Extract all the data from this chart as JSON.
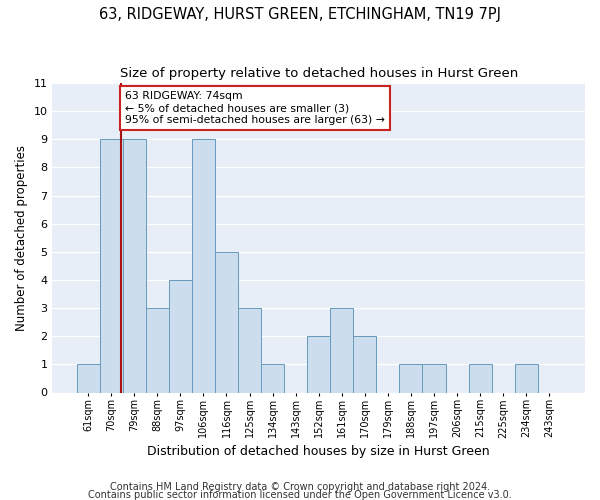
{
  "title": "63, RIDGEWAY, HURST GREEN, ETCHINGHAM, TN19 7PJ",
  "subtitle": "Size of property relative to detached houses in Hurst Green",
  "xlabel": "Distribution of detached houses by size in Hurst Green",
  "ylabel": "Number of detached properties",
  "bins": [
    "61sqm",
    "70sqm",
    "79sqm",
    "88sqm",
    "97sqm",
    "106sqm",
    "116sqm",
    "125sqm",
    "134sqm",
    "143sqm",
    "152sqm",
    "161sqm",
    "170sqm",
    "179sqm",
    "188sqm",
    "197sqm",
    "206sqm",
    "215sqm",
    "225sqm",
    "234sqm",
    "243sqm"
  ],
  "values": [
    1,
    9,
    9,
    3,
    4,
    9,
    5,
    3,
    1,
    0,
    2,
    3,
    2,
    0,
    1,
    1,
    0,
    1,
    0,
    1,
    0
  ],
  "bar_color": "#ccdded",
  "bar_edge_color": "#6699bb",
  "annotation_text": "63 RIDGEWAY: 74sqm\n← 5% of detached houses are smaller (3)\n95% of semi-detached houses are larger (63) →",
  "annotation_box_color": "#ffffff",
  "annotation_box_edge_color": "#cc2222",
  "vline_color": "#aa1111",
  "ylim": [
    0,
    11
  ],
  "yticks": [
    0,
    1,
    2,
    3,
    4,
    5,
    6,
    7,
    8,
    9,
    10,
    11
  ],
  "footer1": "Contains HM Land Registry data © Crown copyright and database right 2024.",
  "footer2": "Contains public sector information licensed under the Open Government Licence v3.0.",
  "title_fontsize": 10.5,
  "subtitle_fontsize": 9.5,
  "xlabel_fontsize": 9,
  "ylabel_fontsize": 8.5,
  "footer_fontsize": 7,
  "axes_bg": "#e8eef8"
}
